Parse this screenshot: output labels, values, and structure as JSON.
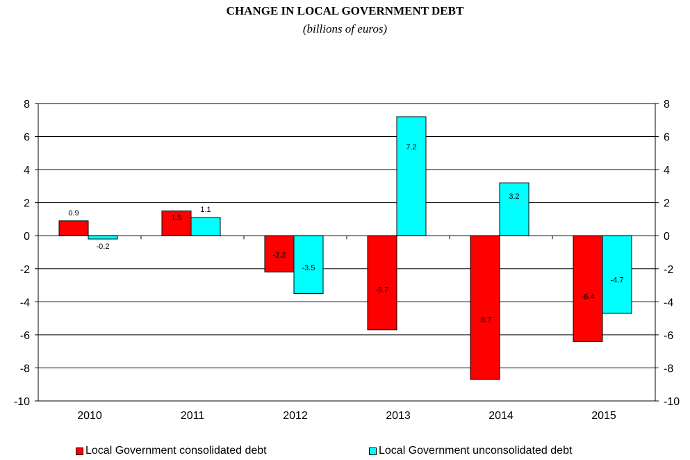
{
  "chart_data": {
    "type": "bar",
    "title": "CHANGE IN LOCAL GOVERNMENT DEBT",
    "subtitle": "(billions of euros)",
    "categories": [
      "2010",
      "2011",
      "2012",
      "2013",
      "2014",
      "2015"
    ],
    "series": [
      {
        "name": "Local Government consolidated debt",
        "color": "#ff0000",
        "values": [
          0.9,
          1.5,
          -2.2,
          -5.7,
          -8.7,
          -6.4
        ],
        "labels": [
          "0.9",
          "1.5",
          "-2.2",
          "-5.7",
          "-8.7",
          "-6.4"
        ]
      },
      {
        "name": "Local Government unconsolidated debt",
        "color": "#00ffff",
        "values": [
          -0.2,
          1.1,
          -3.5,
          7.2,
          3.2,
          -4.7
        ],
        "labels": [
          "-0.2",
          "1.1",
          "-3.5",
          "7.2",
          "3.2",
          "-4.7"
        ]
      }
    ],
    "ylim": [
      -10,
      8
    ],
    "yticks": [
      "8",
      "6",
      "4",
      "2",
      "0",
      "-2",
      "-4",
      "-6",
      "-8",
      "-10"
    ],
    "ytick_values": [
      8,
      6,
      4,
      2,
      0,
      -2,
      -4,
      -6,
      -8,
      -10
    ],
    "secondary_yaxis": true,
    "grid": true,
    "legend_position": "bottom"
  }
}
